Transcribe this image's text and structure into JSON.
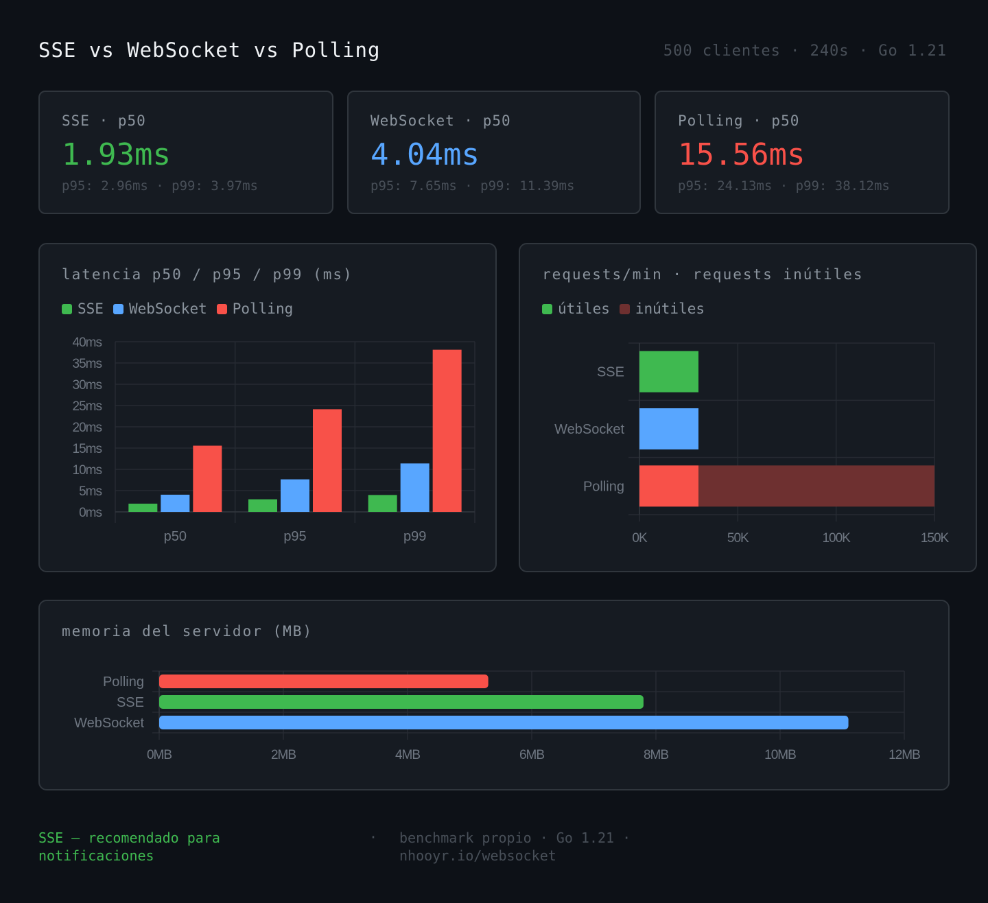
{
  "header": {
    "title": "SSE vs WebSocket vs Polling",
    "meta": "500 clientes · 240s · Go 1.21"
  },
  "cards": [
    {
      "label": "SSE · p50",
      "value": "1.93ms",
      "sub": "p95: 2.96ms · p99: 3.97ms",
      "color": "#3fb950"
    },
    {
      "label": "WebSocket · p50",
      "value": "4.04ms",
      "sub": "p95: 7.65ms · p99: 11.39ms",
      "color": "#58a6ff"
    },
    {
      "label": "Polling · p50",
      "value": "15.56ms",
      "sub": "p95: 24.13ms · p99: 38.12ms",
      "color": "#f85149"
    }
  ],
  "colors": {
    "sse": "#3fb950",
    "websocket": "#58a6ff",
    "polling": "#f85149",
    "inutiles": "#6e3030"
  },
  "chart_data": [
    {
      "type": "bar",
      "title": "latencia p50 / p95 / p99 (ms)",
      "categories": [
        "p50",
        "p95",
        "p99"
      ],
      "series": [
        {
          "name": "SSE",
          "values": [
            1.93,
            2.96,
            3.97
          ]
        },
        {
          "name": "WebSocket",
          "values": [
            4.04,
            7.65,
            11.39
          ]
        },
        {
          "name": "Polling",
          "values": [
            15.56,
            24.13,
            38.12
          ]
        }
      ],
      "ylim": [
        0,
        40
      ],
      "yticks": [
        0,
        5,
        10,
        15,
        20,
        25,
        30,
        35,
        40
      ],
      "ytick_labels": [
        "0ms",
        "5ms",
        "10ms",
        "15ms",
        "20ms",
        "25ms",
        "30ms",
        "35ms",
        "40ms"
      ],
      "grid": true,
      "legend": "top-left"
    },
    {
      "type": "bar",
      "orientation": "horizontal",
      "stacked": true,
      "title": "requests/min · requests inútiles",
      "categories": [
        "SSE",
        "WebSocket",
        "Polling"
      ],
      "series": [
        {
          "name": "útiles",
          "values": [
            30000,
            30000,
            30000
          ]
        },
        {
          "name": "inútiles",
          "values": [
            0,
            0,
            120000
          ]
        }
      ],
      "xlim": [
        0,
        150000
      ],
      "xticks": [
        0,
        50000,
        100000,
        150000
      ],
      "xtick_labels": [
        "0K",
        "50K",
        "100K",
        "150K"
      ],
      "grid": true,
      "legend": "top-left"
    },
    {
      "type": "bar",
      "orientation": "horizontal",
      "title": "memoria del servidor (MB)",
      "categories": [
        "Polling",
        "SSE",
        "WebSocket"
      ],
      "values": [
        5.3,
        7.8,
        11.1
      ],
      "bar_colors": [
        "#f85149",
        "#3fb950",
        "#58a6ff"
      ],
      "xlim": [
        0,
        12
      ],
      "xticks": [
        0,
        2,
        4,
        6,
        8,
        10,
        12
      ],
      "xtick_labels": [
        "0MB",
        "2MB",
        "4MB",
        "6MB",
        "8MB",
        "10MB",
        "12MB"
      ],
      "grid": true
    }
  ],
  "footer": {
    "left": "SSE — recomendado para notificaciones",
    "sep": "·",
    "right": "benchmark propio · Go 1.21 · nhooyr.io/websocket"
  }
}
